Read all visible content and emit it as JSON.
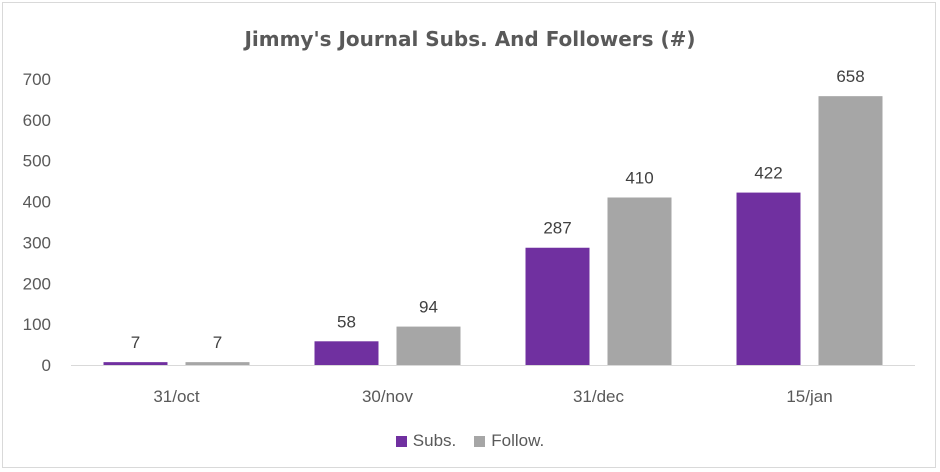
{
  "chart_data": {
    "type": "bar",
    "title": "Jimmy's Journal Subs. And Followers (#)",
    "categories": [
      "31/oct",
      "30/nov",
      "31/dec",
      "15/jan"
    ],
    "series": [
      {
        "name": "Subs.",
        "values": [
          7,
          58,
          287,
          422
        ],
        "color": "#7030a0"
      },
      {
        "name": "Follow.",
        "values": [
          7,
          94,
          410,
          658
        ],
        "color": "#a6a6a6"
      }
    ],
    "ylim": [
      0,
      700
    ],
    "yticks": [
      0,
      100,
      200,
      300,
      400,
      500,
      600,
      700
    ],
    "grid": false,
    "legend_position": "bottom",
    "data_labels": true
  }
}
